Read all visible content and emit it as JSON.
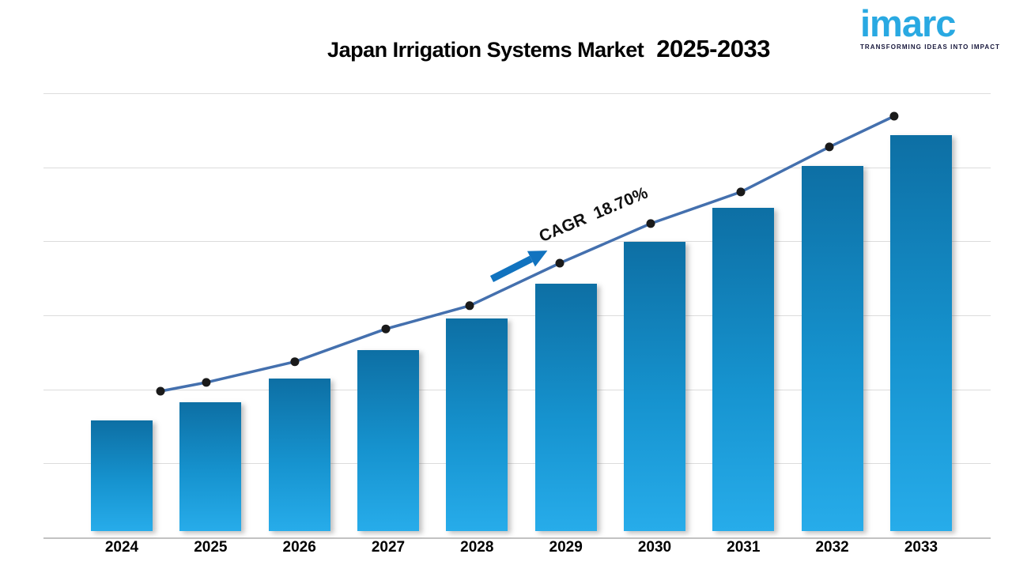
{
  "header": {
    "title_main": "Japan Irrigation Systems Market",
    "title_range": "2025-2033"
  },
  "logo": {
    "wordmark": "imarc",
    "tagline": "TRANSFORMING IDEAS INTO IMPACT"
  },
  "chart_data": {
    "type": "bar",
    "title": "Japan Irrigation Systems Market 2025-2033",
    "xlabel": "",
    "ylabel": "",
    "units": "relative market size (y-axis unlabeled), max year = 100",
    "grid": {
      "visible": true,
      "lines": 7
    },
    "categories": [
      "2024",
      "2025",
      "2026",
      "2027",
      "2028",
      "2029",
      "2030",
      "2031",
      "2032",
      "2033"
    ],
    "values": [
      27.9,
      32.5,
      38.5,
      45.7,
      53.7,
      62.5,
      73.1,
      81.6,
      92.2,
      100
    ],
    "series": [
      {
        "name": "trend-line",
        "type": "line",
        "x_frac": [
          0.1235,
          0.1719,
          0.2654,
          0.3614,
          0.4499,
          0.5451,
          0.6411,
          0.7362,
          0.8297,
          0.8981
        ],
        "values": [
          34.7,
          36.8,
          41.7,
          49.5,
          55.0,
          65.1,
          74.5,
          82.0,
          92.7,
          100
        ]
      }
    ],
    "annotation": {
      "label": "CAGR  18.70%"
    },
    "colors": {
      "bar_top": "#0D6FA4",
      "bar_mid": "#1693CF",
      "bar_bottom": "#27ACEA",
      "line": "#4470AE",
      "marker": "#1A1A1A",
      "arrow": "#1173BF",
      "grid": "#DCDCDC",
      "axis": "#C2C2C2",
      "logo_blue": "#29A9E2",
      "logo_dark": "#17173B"
    }
  }
}
